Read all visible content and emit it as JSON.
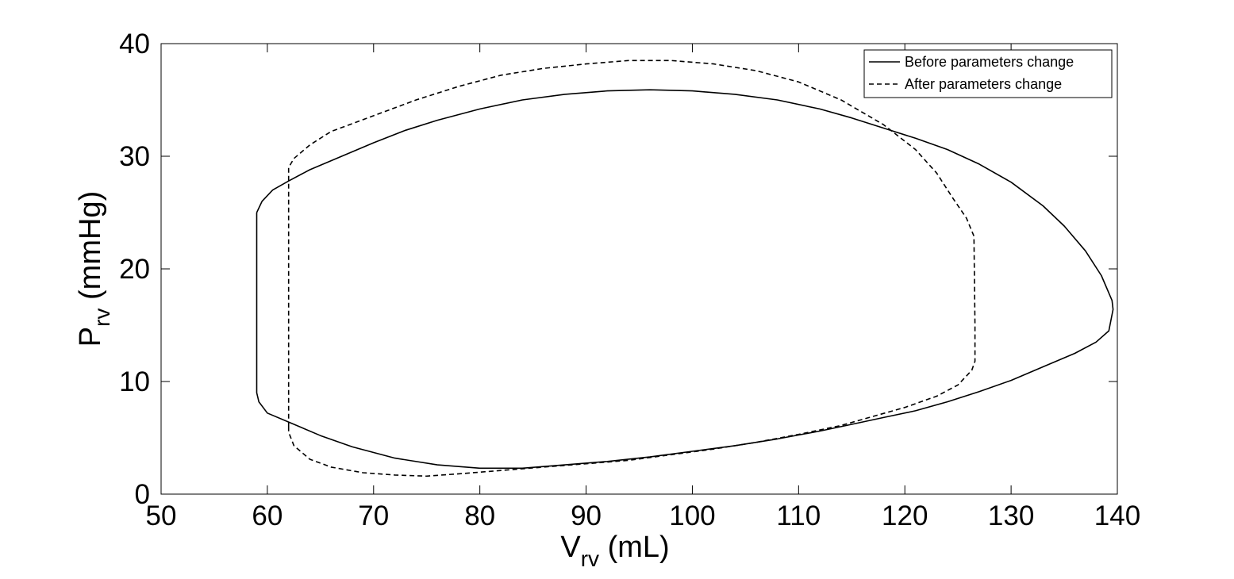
{
  "chart_data": {
    "type": "line",
    "title": "",
    "xlabel": {
      "main": "V",
      "sub": "rv",
      "unit": " (mL)"
    },
    "ylabel": {
      "main": "P",
      "sub": "rv",
      "unit": " (mmHg)"
    },
    "xlim": [
      50,
      140
    ],
    "ylim": [
      0,
      40
    ],
    "xticks": [
      50,
      60,
      70,
      80,
      90,
      100,
      110,
      120,
      130,
      140
    ],
    "yticks": [
      0,
      10,
      20,
      30,
      40
    ],
    "xtick_labels": [
      "50",
      "60",
      "70",
      "80",
      "90",
      "100",
      "110",
      "120",
      "130",
      "140"
    ],
    "ytick_labels": [
      "0",
      "10",
      "20",
      "30",
      "40"
    ],
    "grid": false,
    "legend_position": "top-right",
    "series": [
      {
        "name": "Before parameters change",
        "style": "solid",
        "color": "#000000",
        "x": [
          59,
          59.5,
          60.5,
          62,
          64,
          67,
          70,
          73,
          76,
          80,
          84,
          88,
          92,
          96,
          100,
          104,
          108,
          112,
          115,
          118,
          121,
          124,
          127,
          130,
          133,
          135,
          137,
          138.5,
          139.5,
          139.6,
          139.2,
          138,
          136,
          133,
          130,
          127,
          124,
          121,
          118,
          115,
          112,
          108,
          104,
          100,
          96,
          92,
          88,
          84,
          80,
          76,
          72,
          68,
          65,
          62,
          60,
          59.2,
          59,
          59
        ],
        "y": [
          25,
          26,
          27,
          27.8,
          28.8,
          30,
          31.2,
          32.3,
          33.2,
          34.2,
          35,
          35.5,
          35.8,
          35.9,
          35.8,
          35.5,
          35,
          34.2,
          33.4,
          32.5,
          31.6,
          30.6,
          29.3,
          27.7,
          25.6,
          23.8,
          21.6,
          19.4,
          17.2,
          16.4,
          14.5,
          13.5,
          12.5,
          11.3,
          10.1,
          9.1,
          8.2,
          7.4,
          6.8,
          6.2,
          5.6,
          4.9,
          4.3,
          3.8,
          3.3,
          2.9,
          2.6,
          2.3,
          2.3,
          2.6,
          3.2,
          4.2,
          5.2,
          6.4,
          7.2,
          8.2,
          9,
          25
        ]
      },
      {
        "name": "After parameters change",
        "style": "dashed",
        "color": "#000000",
        "x": [
          62,
          62,
          62,
          62.5,
          64,
          66,
          70,
          74,
          78,
          82,
          86,
          90,
          94,
          98,
          102,
          106,
          110,
          114,
          118,
          121,
          123,
          124.5,
          125.8,
          126.5,
          126.6,
          126.6,
          126.3,
          125,
          123,
          120,
          117,
          114,
          110,
          106,
          102,
          98,
          94,
          90,
          86,
          82,
          78,
          75,
          72,
          69,
          66,
          64,
          62.5,
          62,
          62
        ],
        "y": [
          6,
          18,
          29,
          29.8,
          31,
          32.2,
          33.6,
          35,
          36.2,
          37.2,
          37.8,
          38.2,
          38.5,
          38.5,
          38.2,
          37.6,
          36.6,
          35,
          32.8,
          30.6,
          28.5,
          26.3,
          24.5,
          22.9,
          15,
          11.8,
          11,
          9.7,
          8.7,
          7.7,
          6.9,
          6.1,
          5.3,
          4.6,
          4,
          3.5,
          3,
          2.7,
          2.4,
          2.1,
          1.8,
          1.6,
          1.7,
          1.9,
          2.4,
          3.1,
          4.3,
          5.5,
          6
        ]
      }
    ]
  }
}
